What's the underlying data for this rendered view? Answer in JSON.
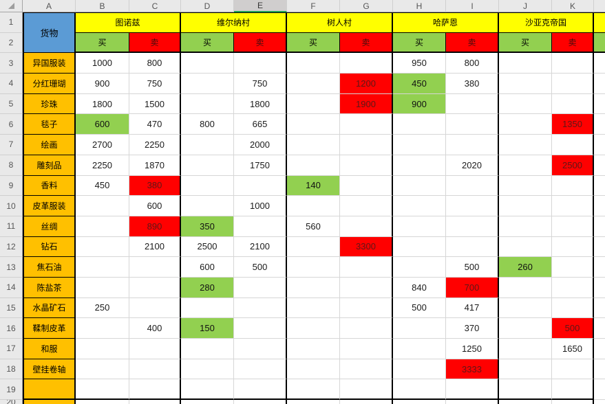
{
  "sheet": {
    "column_headers": [
      "A",
      "B",
      "C",
      "D",
      "E",
      "F",
      "G",
      "H",
      "I",
      "J",
      "K",
      ""
    ],
    "selected_column": "E",
    "row_numbers": [
      1,
      2,
      3,
      4,
      5,
      6,
      7,
      8,
      9,
      10,
      11,
      12,
      13,
      14,
      15,
      16,
      17,
      18,
      19
    ],
    "partial_row_number": "20",
    "goods_label": "货物",
    "buy_label": "买",
    "sell_label": "卖",
    "cities": [
      "图诺兹",
      "维尔纳村",
      "树人村",
      "哈萨恩",
      "沙亚克帝国"
    ],
    "items": [
      "异国服装",
      "分红珊瑚",
      "珍珠",
      "毯子",
      "绘画",
      "雕刻品",
      "香料",
      "皮革服装",
      "丝绸",
      "钻石",
      "焦石油",
      "陈盐茶",
      "水晶矿石",
      "鞣制皮革",
      "和服",
      "壁挂卷轴",
      ""
    ],
    "cells": [
      {
        "ref": "B3",
        "value": "1000"
      },
      {
        "ref": "C3",
        "value": "800"
      },
      {
        "ref": "H3",
        "value": "950"
      },
      {
        "ref": "I3",
        "value": "800"
      },
      {
        "ref": "B4",
        "value": "900"
      },
      {
        "ref": "C4",
        "value": "750"
      },
      {
        "ref": "E4",
        "value": "750"
      },
      {
        "ref": "G4",
        "value": "1200",
        "highlight": "red"
      },
      {
        "ref": "H4",
        "value": "450",
        "highlight": "green"
      },
      {
        "ref": "I4",
        "value": "380"
      },
      {
        "ref": "B5",
        "value": "1800"
      },
      {
        "ref": "C5",
        "value": "1500"
      },
      {
        "ref": "E5",
        "value": "1800"
      },
      {
        "ref": "G5",
        "value": "1900",
        "highlight": "red"
      },
      {
        "ref": "H5",
        "value": "900",
        "highlight": "green"
      },
      {
        "ref": "B6",
        "value": "600",
        "highlight": "green"
      },
      {
        "ref": "C6",
        "value": "470"
      },
      {
        "ref": "D6",
        "value": "800"
      },
      {
        "ref": "E6",
        "value": "665"
      },
      {
        "ref": "K6",
        "value": "1350",
        "highlight": "red"
      },
      {
        "ref": "B7",
        "value": "2700"
      },
      {
        "ref": "C7",
        "value": "2250"
      },
      {
        "ref": "E7",
        "value": "2000"
      },
      {
        "ref": "B8",
        "value": "2250"
      },
      {
        "ref": "C8",
        "value": "1870"
      },
      {
        "ref": "E8",
        "value": "1750"
      },
      {
        "ref": "I8",
        "value": "2020"
      },
      {
        "ref": "K8",
        "value": "2500",
        "highlight": "red"
      },
      {
        "ref": "B9",
        "value": "450"
      },
      {
        "ref": "C9",
        "value": "380",
        "highlight": "red"
      },
      {
        "ref": "F9",
        "value": "140",
        "highlight": "green"
      },
      {
        "ref": "C10",
        "value": "600"
      },
      {
        "ref": "E10",
        "value": "1000"
      },
      {
        "ref": "C11",
        "value": "890",
        "highlight": "red"
      },
      {
        "ref": "D11",
        "value": "350",
        "highlight": "green"
      },
      {
        "ref": "F11",
        "value": "560"
      },
      {
        "ref": "C12",
        "value": "2100"
      },
      {
        "ref": "D12",
        "value": "2500"
      },
      {
        "ref": "E12",
        "value": "2100"
      },
      {
        "ref": "G12",
        "value": "3300",
        "highlight": "red"
      },
      {
        "ref": "D13",
        "value": "600"
      },
      {
        "ref": "E13",
        "value": "500"
      },
      {
        "ref": "I13",
        "value": "500"
      },
      {
        "ref": "J13",
        "value": "260",
        "highlight": "green"
      },
      {
        "ref": "D14",
        "value": "280",
        "highlight": "green"
      },
      {
        "ref": "H14",
        "value": "840"
      },
      {
        "ref": "I14",
        "value": "700",
        "highlight": "red"
      },
      {
        "ref": "B15",
        "value": "250"
      },
      {
        "ref": "H15",
        "value": "500"
      },
      {
        "ref": "I15",
        "value": "417"
      },
      {
        "ref": "C16",
        "value": "400"
      },
      {
        "ref": "D16",
        "value": "150",
        "highlight": "green"
      },
      {
        "ref": "I16",
        "value": "370"
      },
      {
        "ref": "K16",
        "value": "500",
        "highlight": "red"
      },
      {
        "ref": "I17",
        "value": "1250"
      },
      {
        "ref": "K17",
        "value": "1650"
      },
      {
        "ref": "I18",
        "value": "3333",
        "highlight": "red"
      }
    ],
    "colors": {
      "city_header": "#FFFF00",
      "buy": "#92D050",
      "sell": "#FF0000",
      "item_column": "#FFC000",
      "goods_header": "#5B9BD5",
      "selection_underline": "#1E9E53"
    }
  }
}
